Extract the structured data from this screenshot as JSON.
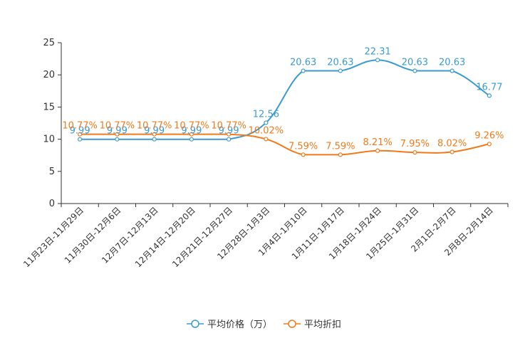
{
  "chart_data": {
    "type": "line",
    "categories": [
      "11月23日-11月29日",
      "11月30日-12月6日",
      "12月7日-12月13日",
      "12月14日-12月20日",
      "12月21日-12月27日",
      "12月28日-1月3日",
      "1月4日-1月10日",
      "1月11日-1月17日",
      "1月18日-1月24日",
      "1月25日-1月31日",
      "2月1日-2月7日",
      "2月8日-2月14日"
    ],
    "ylim": [
      0,
      25
    ],
    "yticks": [
      0,
      5,
      10,
      15,
      20,
      25
    ],
    "legend_position": "bottom",
    "series": [
      {
        "name": "平均价格（万）",
        "color": "#3a9bd0",
        "values": [
          9.99,
          9.99,
          9.99,
          9.99,
          9.99,
          12.56,
          20.63,
          20.63,
          22.31,
          20.63,
          20.63,
          16.77
        ],
        "labels": [
          "9.99",
          "9.99",
          "9.99",
          "9.99",
          "9.99",
          "12.56",
          "20.63",
          "20.63",
          "22.31",
          "20.63",
          "20.63",
          "16.77"
        ]
      },
      {
        "name": "平均折扣",
        "color": "#f07a1a",
        "values": [
          10.77,
          10.77,
          10.77,
          10.77,
          10.77,
          10.02,
          7.59,
          7.59,
          8.21,
          7.95,
          8.02,
          9.26
        ],
        "labels": [
          "10.77%",
          "10.77%",
          "10.77%",
          "10.77%",
          "10.77%",
          "10.02%",
          "7.59%",
          "7.59%",
          "8.21%",
          "7.95%",
          "8.02%",
          "9.26%"
        ]
      }
    ]
  }
}
